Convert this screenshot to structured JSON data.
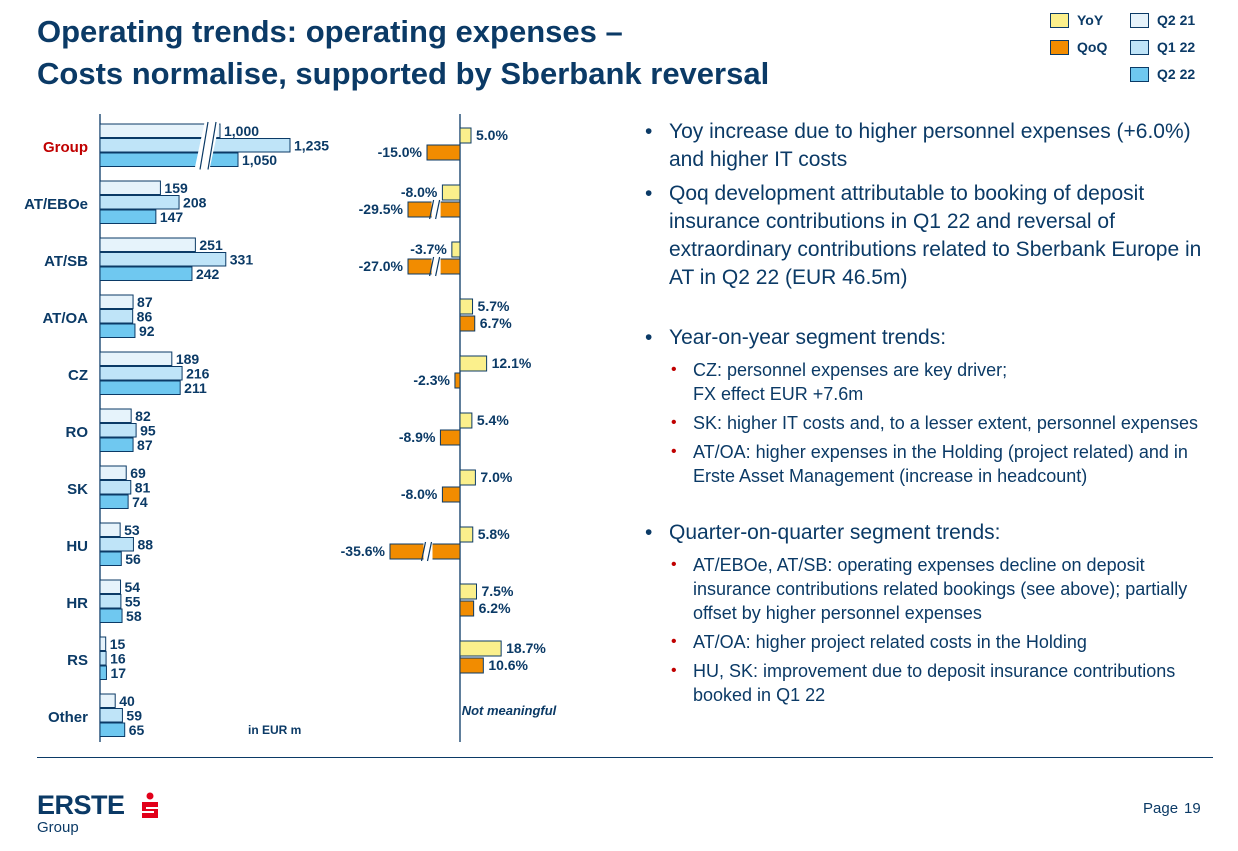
{
  "slide": {
    "title": "Operating trends: operating expenses –",
    "subtitle": "Costs normalise, supported by Sberbank reversal",
    "page_label": "Page",
    "page_number": "19"
  },
  "legend": {
    "yoy": "YoY",
    "qoq": "QoQ",
    "q2_21": "Q2 21",
    "q1_22": "Q1 22",
    "q2_22": "Q2 22"
  },
  "colors": {
    "q2_21": "#e6f3fb",
    "q1_22": "#bfe4f8",
    "q2_22": "#6fc8f0",
    "yoy": "#fbf08c",
    "qoq": "#f28c00",
    "navy": "#0b3a66",
    "group_label": "#c00000"
  },
  "chart_data": {
    "type": "bar",
    "orientation": "horizontal",
    "unit_note": "in EUR m",
    "not_meaningful_note": "Not meaningful",
    "categories": [
      "Group",
      "AT/EBOe",
      "AT/SB",
      "AT/OA",
      "CZ",
      "RO",
      "SK",
      "HU",
      "HR",
      "RS",
      "Other"
    ],
    "series": [
      {
        "name": "Q2 21",
        "values": [
          1000,
          159,
          251,
          87,
          189,
          82,
          69,
          53,
          54,
          15,
          40
        ],
        "labels": [
          "1,000",
          "159",
          "251",
          "87",
          "189",
          "82",
          "69",
          "53",
          "54",
          "15",
          "40"
        ]
      },
      {
        "name": "Q1 22",
        "values": [
          1235,
          208,
          331,
          86,
          216,
          95,
          81,
          88,
          55,
          16,
          59
        ],
        "labels": [
          "1,235",
          "208",
          "331",
          "86",
          "216",
          "95",
          "81",
          "88",
          "55",
          "16",
          "59"
        ]
      },
      {
        "name": "Q2 22",
        "values": [
          1050,
          147,
          242,
          92,
          211,
          87,
          74,
          56,
          58,
          17,
          65
        ],
        "labels": [
          "1,050",
          "147",
          "242",
          "92",
          "211",
          "87",
          "74",
          "56",
          "58",
          "17",
          "65"
        ]
      }
    ],
    "changes": [
      {
        "name": "YoY",
        "values": [
          5.0,
          -8.0,
          -3.7,
          5.7,
          12.1,
          5.4,
          7.0,
          5.8,
          7.5,
          18.7,
          null
        ],
        "labels": [
          "5.0%",
          "-8.0%",
          "-3.7%",
          "5.7%",
          "12.1%",
          "5.4%",
          "7.0%",
          "5.8%",
          "7.5%",
          "18.7%",
          ""
        ]
      },
      {
        "name": "QoQ",
        "values": [
          -15.0,
          -29.5,
          -27.0,
          6.7,
          -2.3,
          -8.9,
          -8.0,
          -35.6,
          6.2,
          10.6,
          null
        ],
        "labels": [
          "-15.0%",
          "-29.5%",
          "-27.0%",
          "6.7%",
          "-2.3%",
          "-8.9%",
          "-8.0%",
          "-35.6%",
          "6.2%",
          "10.6%",
          ""
        ]
      }
    ]
  },
  "commentary": [
    {
      "level": 1,
      "text": "Yoy increase due to higher personnel expenses (+6.0%) and higher IT costs"
    },
    {
      "level": 1,
      "text": "Qoq development attributable to booking of deposit insurance contributions in Q1 22 and reversal of extraordinary contributions related to Sberbank Europe in AT in Q2 22 (EUR 46.5m)"
    },
    {
      "level": 1,
      "text": "Year-on-year segment trends:",
      "gap_before": true
    },
    {
      "level": 2,
      "text": "CZ: personnel expenses are key driver;\nFX effect EUR +7.6m"
    },
    {
      "level": 2,
      "text": "SK: higher IT costs and, to a lesser extent, personnel expenses"
    },
    {
      "level": 2,
      "text": "AT/OA: higher expenses in the Holding (project related) and in Erste Asset Management (increase in headcount)"
    },
    {
      "level": 1,
      "text": "Quarter-on-quarter segment trends:",
      "gap_before": true
    },
    {
      "level": 2,
      "text": "AT/EBOe, AT/SB: operating expenses decline on deposit insurance contributions related bookings (see above); partially offset by higher personnel expenses"
    },
    {
      "level": 2,
      "text": "AT/OA: higher project related costs in the Holding"
    },
    {
      "level": 2,
      "text": "HU, SK: improvement due to deposit insurance contributions booked in Q1 22"
    }
  ],
  "logo": {
    "name": "ERSTE",
    "sub": "Group"
  }
}
